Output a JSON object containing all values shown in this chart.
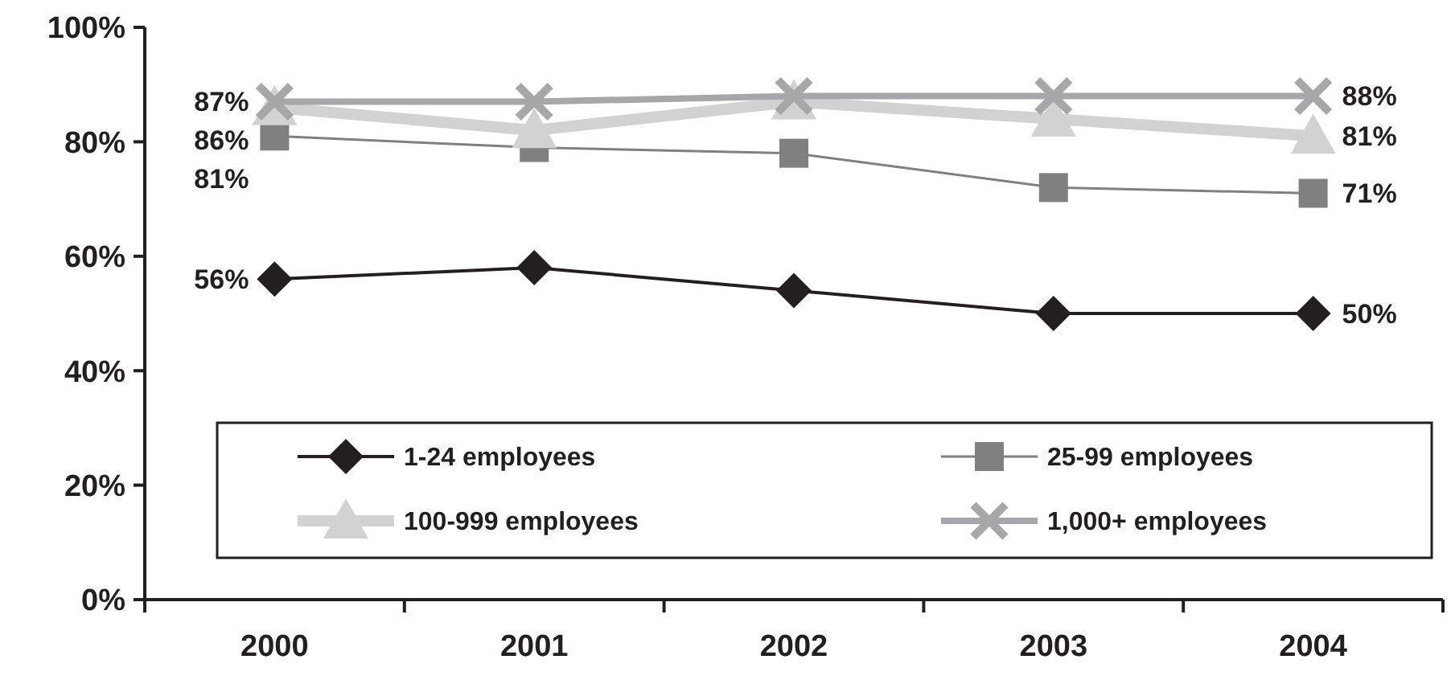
{
  "chart_data": {
    "type": "line",
    "categories": [
      "2000",
      "2001",
      "2002",
      "2003",
      "2004"
    ],
    "series": [
      {
        "name": "1-24 employees",
        "color": "#231f20",
        "marker": "diamond",
        "values": [
          56,
          58,
          54,
          50,
          50
        ],
        "value_labels": [
          "56%",
          null,
          null,
          null,
          "50%"
        ]
      },
      {
        "name": "25-99 employees",
        "color": "#808080",
        "marker": "square",
        "values": [
          81,
          79,
          78,
          72,
          71
        ],
        "value_labels": [
          "81%",
          null,
          null,
          null,
          "71%"
        ]
      },
      {
        "name": "100-999 employees",
        "color": "#d2d2d2",
        "marker": "triangle",
        "values": [
          86,
          82,
          87,
          84,
          81
        ],
        "value_labels": [
          "86%",
          null,
          null,
          null,
          "81%"
        ]
      },
      {
        "name": "1,000+ employees",
        "color": "#a7a7aa",
        "marker": "cross",
        "values": [
          87,
          87,
          88,
          88,
          88
        ],
        "value_labels": [
          "87%",
          null,
          null,
          null,
          "88%"
        ]
      }
    ],
    "ylim": [
      0,
      100
    ],
    "yticks": [
      {
        "value": 0,
        "label": "0%"
      },
      {
        "value": 20,
        "label": "20%"
      },
      {
        "value": 40,
        "label": "40%"
      },
      {
        "value": 60,
        "label": "60%"
      },
      {
        "value": 80,
        "label": "80%"
      },
      {
        "value": 100,
        "label": "100%"
      }
    ],
    "grid": false,
    "legend": "bottom"
  }
}
